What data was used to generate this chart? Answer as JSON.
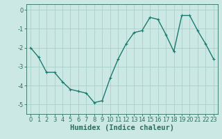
{
  "x": [
    0,
    1,
    2,
    3,
    4,
    5,
    6,
    7,
    8,
    9,
    10,
    11,
    12,
    13,
    14,
    15,
    16,
    17,
    18,
    19,
    20,
    21,
    22,
    23
  ],
  "y": [
    -2.0,
    -2.5,
    -3.3,
    -3.3,
    -3.8,
    -4.2,
    -4.3,
    -4.4,
    -4.9,
    -4.8,
    -3.6,
    -2.6,
    -1.8,
    -1.2,
    -1.1,
    -0.4,
    -0.5,
    -1.3,
    -2.2,
    -0.3,
    -0.3,
    -1.1,
    -1.8,
    -2.6
  ],
  "line_color": "#1a7a6e",
  "marker": "+",
  "marker_size": 3,
  "bg_color": "#cce8e4",
  "grid_color": "#aad0cc",
  "xlabel": "Humidex (Indice chaleur)",
  "xlabel_fontsize": 7.5,
  "yticks": [
    0,
    -1,
    -2,
    -3,
    -4,
    -5
  ],
  "xticks": [
    0,
    1,
    2,
    3,
    4,
    5,
    6,
    7,
    8,
    9,
    10,
    11,
    12,
    13,
    14,
    15,
    16,
    17,
    18,
    19,
    20,
    21,
    22,
    23
  ],
  "ylim": [
    -5.5,
    0.3
  ],
  "xlim": [
    -0.5,
    23.5
  ],
  "tick_fontsize": 6,
  "axis_color": "#2d6e5e",
  "linewidth": 1.0,
  "markeredgewidth": 0.8
}
